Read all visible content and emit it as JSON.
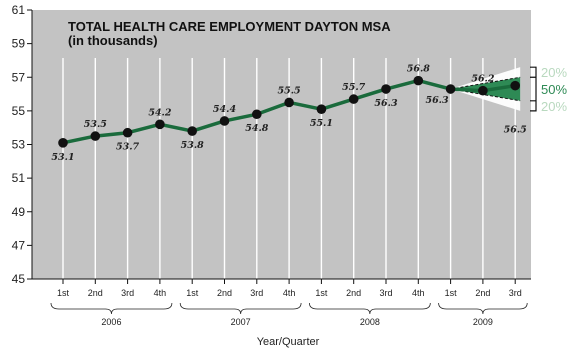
{
  "chart_data": {
    "type": "line",
    "title": "TOTAL HEALTH CARE EMPLOYMENT DAYTON MSA",
    "subtitle": "(in thousands)",
    "xlabel": "Year/Quarter",
    "ylabel": "",
    "ylim": [
      45,
      61
    ],
    "yticks": [
      45,
      47,
      49,
      51,
      53,
      55,
      57,
      59,
      61
    ],
    "grid": "vertical",
    "years": [
      {
        "label": "2006",
        "quarters": [
          "1st",
          "2nd",
          "3rd",
          "4th"
        ]
      },
      {
        "label": "2007",
        "quarters": [
          "1st",
          "2nd",
          "3rd",
          "4th"
        ]
      },
      {
        "label": "2008",
        "quarters": [
          "1st",
          "2nd",
          "3rd",
          "4th"
        ]
      },
      {
        "label": "2009",
        "quarters": [
          "1st",
          "2nd",
          "3rd"
        ]
      }
    ],
    "series": [
      {
        "values": [
          53.1,
          53.5,
          53.7,
          54.2,
          53.8,
          54.4,
          54.8,
          55.5,
          55.1,
          55.7,
          56.3,
          56.8,
          56.3,
          56.2,
          56.5
        ],
        "labels": [
          "53.1",
          "53.5",
          "53.7",
          "54.2",
          "53.8",
          "54.4",
          "54.8",
          "55.5",
          "55.1",
          "55.7",
          "56.3",
          "56.8",
          "56.3",
          "56.2",
          "56.5"
        ],
        "color": "#1a6b3c"
      }
    ],
    "forecast_band": {
      "start_index": 12,
      "end_index": 14,
      "outer_upper": 57.6,
      "inner_upper": 57.0,
      "inner_lower": 55.6,
      "outer_lower": 55.0,
      "labels": [
        "20%",
        "50%",
        "20%"
      ],
      "colors": [
        "#b9d9bf",
        "#2e8a55",
        "#b9d9bf"
      ]
    },
    "colors": {
      "background": "#c3c3c3",
      "line": "#1a6b3c",
      "marker": "#111111",
      "grid": "#ffffff"
    }
  }
}
